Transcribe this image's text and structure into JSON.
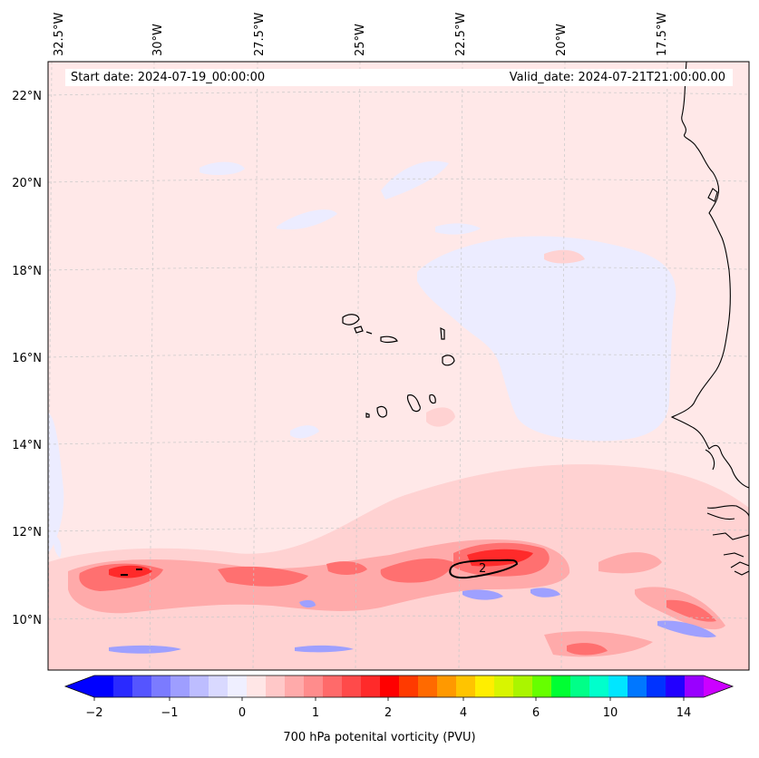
{
  "header": {
    "start_date": "Start date: 2024-07-19_00:00:00",
    "valid_date": "Valid_date: 2024-07-21T21:00:00.00"
  },
  "lon_labels": [
    "32.5°W",
    "30°W",
    "27.5°W",
    "25°W",
    "22.5°W",
    "20°W",
    "17.5°W"
  ],
  "lat_labels": [
    "22°N",
    "20°N",
    "18°N",
    "16°N",
    "14°N",
    "12°N",
    "10°N"
  ],
  "colorbar": {
    "label": "700 hPa potenital vorticity (PVU)",
    "ticks": [
      "−2",
      "−1",
      "0",
      "1",
      "2",
      "4",
      "6",
      "10",
      "14"
    ],
    "colors": [
      "#0000ff",
      "#2a2aff",
      "#5555ff",
      "#7b7bff",
      "#9e9eff",
      "#bdbdff",
      "#d9d9ff",
      "#efefff",
      "#ffe6e6",
      "#ffc8c8",
      "#ffaaaa",
      "#ff8c8c",
      "#ff6a6a",
      "#ff4a4a",
      "#ff2a2a",
      "#ff0000",
      "#ff3a00",
      "#ff6a00",
      "#ff9900",
      "#ffc400",
      "#ffee00",
      "#d8f500",
      "#aaf500",
      "#66ff00",
      "#00ff33",
      "#00ff88",
      "#00ffcc",
      "#00e6ff",
      "#0077ff",
      "#0033ff",
      "#2200ff",
      "#9900ff"
    ],
    "under_color": "#0000ff",
    "over_color": "#cc00ff"
  },
  "contour_label": "2",
  "map_colors": {
    "background": "#ffe8e8",
    "negative": "#ececff",
    "negative_strong": "#9ea0ff",
    "positive_light": "#ffc8c8",
    "positive_mid": "#ff8c8c",
    "positive_strong": "#ff3030",
    "coast": "#000000"
  }
}
